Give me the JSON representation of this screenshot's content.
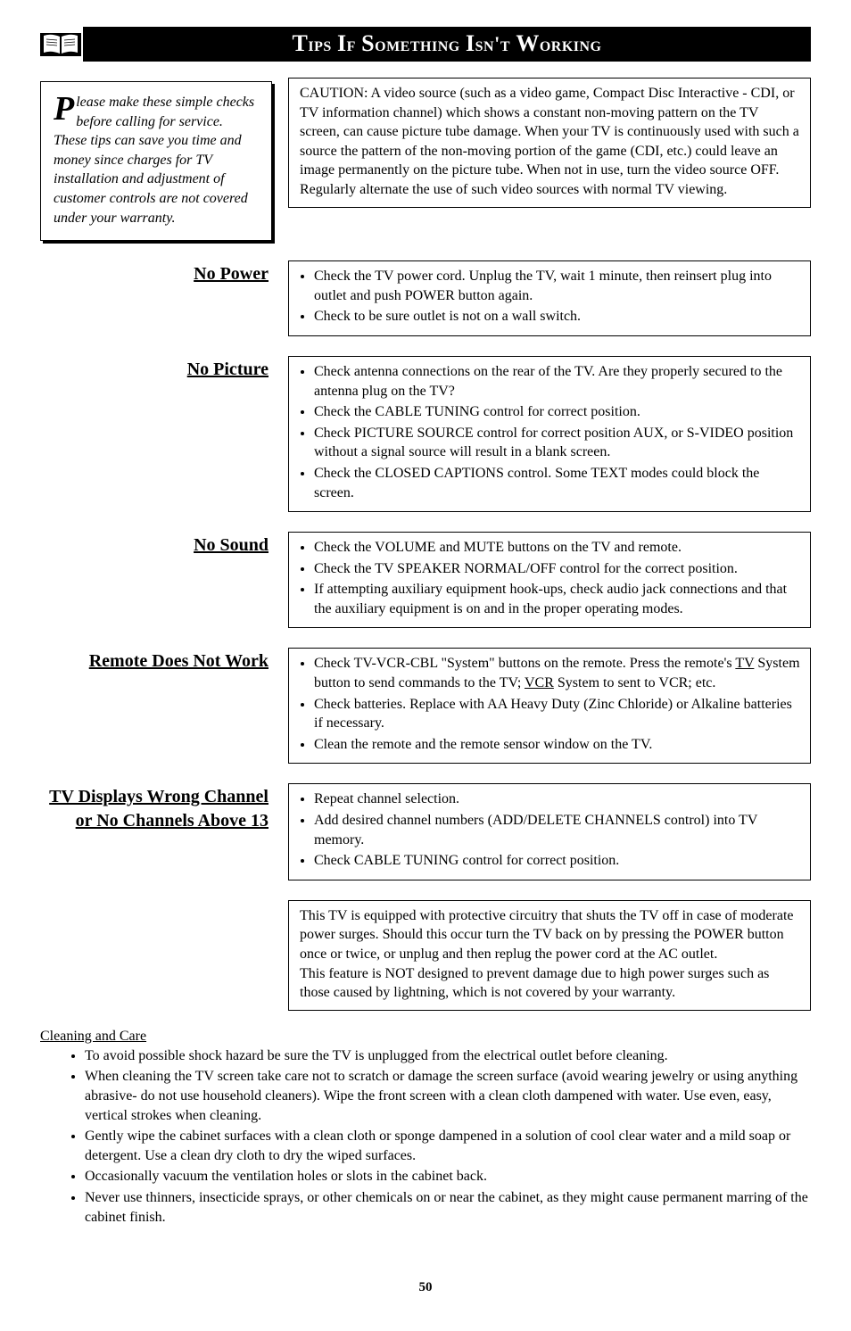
{
  "title": "Tips If Something Isn't Working",
  "intro": {
    "dropcap": "P",
    "text": "lease make these simple checks before calling for service. These tips can save you time and money since charges for TV installation and adjustment of customer controls are not covered under your warranty."
  },
  "caution": "CAUTION: A video source (such as a video game, Compact Disc Interactive - CDI, or TV information channel) which shows a constant non-moving pattern on the TV screen, can cause picture tube damage. When your TV is continuously used with such a source the pattern of the non-moving portion of the game (CDI, etc.) could leave an image permanently on the picture tube. When not in use, turn the video source OFF. Regularly alternate the use of such video sources with normal TV viewing.",
  "sections": [
    {
      "heading": "No Power",
      "items": [
        "Check the TV power cord. Unplug the TV, wait 1 minute, then reinsert plug into outlet and push POWER button again.",
        "Check to be sure outlet is not on a wall switch."
      ]
    },
    {
      "heading": "No Picture",
      "items": [
        "Check antenna connections on the rear of the TV. Are they properly secured to the antenna plug on the TV?",
        "Check the CABLE TUNING control for correct position.",
        "Check PICTURE SOURCE control for correct position AUX, or S-VIDEO position without a signal source will result in a blank screen.",
        "Check the CLOSED CAPTIONS control. Some TEXT modes could block the screen."
      ]
    },
    {
      "heading": "No Sound",
      "items": [
        "Check the VOLUME and MUTE buttons on the TV and remote.",
        "Check the TV SPEAKER NORMAL/OFF control for the correct position.",
        "If attempting auxiliary equipment hook-ups, check audio jack connections and that the auxiliary equipment is on and in the proper operating modes."
      ]
    },
    {
      "heading": "Remote Does Not Work",
      "items_html": [
        "Check TV-VCR-CBL \"System\" buttons on the remote. Press the remote's <span class=\"tvu\">TV</span> System button to send commands to the TV; <span class=\"tvu\">VCR</span> System to sent to VCR; etc.",
        "Check batteries. Replace with AA Heavy Duty (Zinc Chloride) or Alkaline batteries if necessary.",
        "Clean the remote and the remote sensor window on the TV."
      ]
    },
    {
      "heading": "TV Displays Wrong Channel or No Channels Above 13",
      "items": [
        "Repeat channel selection.",
        "Add desired channel numbers (ADD/DELETE CHANNELS control) into TV memory.",
        "Check CABLE TUNING control for correct position."
      ]
    }
  ],
  "note": "This TV is equipped with protective circuitry that shuts the TV off in case of moderate power surges. Should this occur turn the TV back on by pressing the POWER button once or twice, or unplug and then replug the power cord at the AC outlet.\nThis feature is NOT designed to prevent damage due to high power surges such as those caused by lightning, which is not covered by your warranty.",
  "cleaning": {
    "heading": "Cleaning and Care",
    "items": [
      "To avoid possible shock hazard be sure the TV is unplugged from the electrical outlet before cleaning.",
      "When cleaning the TV screen take care not to scratch or damage the screen surface (avoid wearing jewelry or using anything abrasive- do not use household cleaners). Wipe the front screen with a clean cloth dampened with water. Use even, easy, vertical strokes when cleaning.",
      "Gently wipe the cabinet surfaces with a clean cloth or sponge dampened in a solution of cool clear water and a mild soap or detergent. Use a clean dry cloth to dry the wiped surfaces.",
      "Occasionally vacuum the ventilation holes or slots in the cabinet back.",
      "Never use thinners, insecticide sprays, or other chemicals on or near the cabinet, as they might cause permanent marring of the cabinet finish."
    ]
  },
  "pageNumber": "50"
}
